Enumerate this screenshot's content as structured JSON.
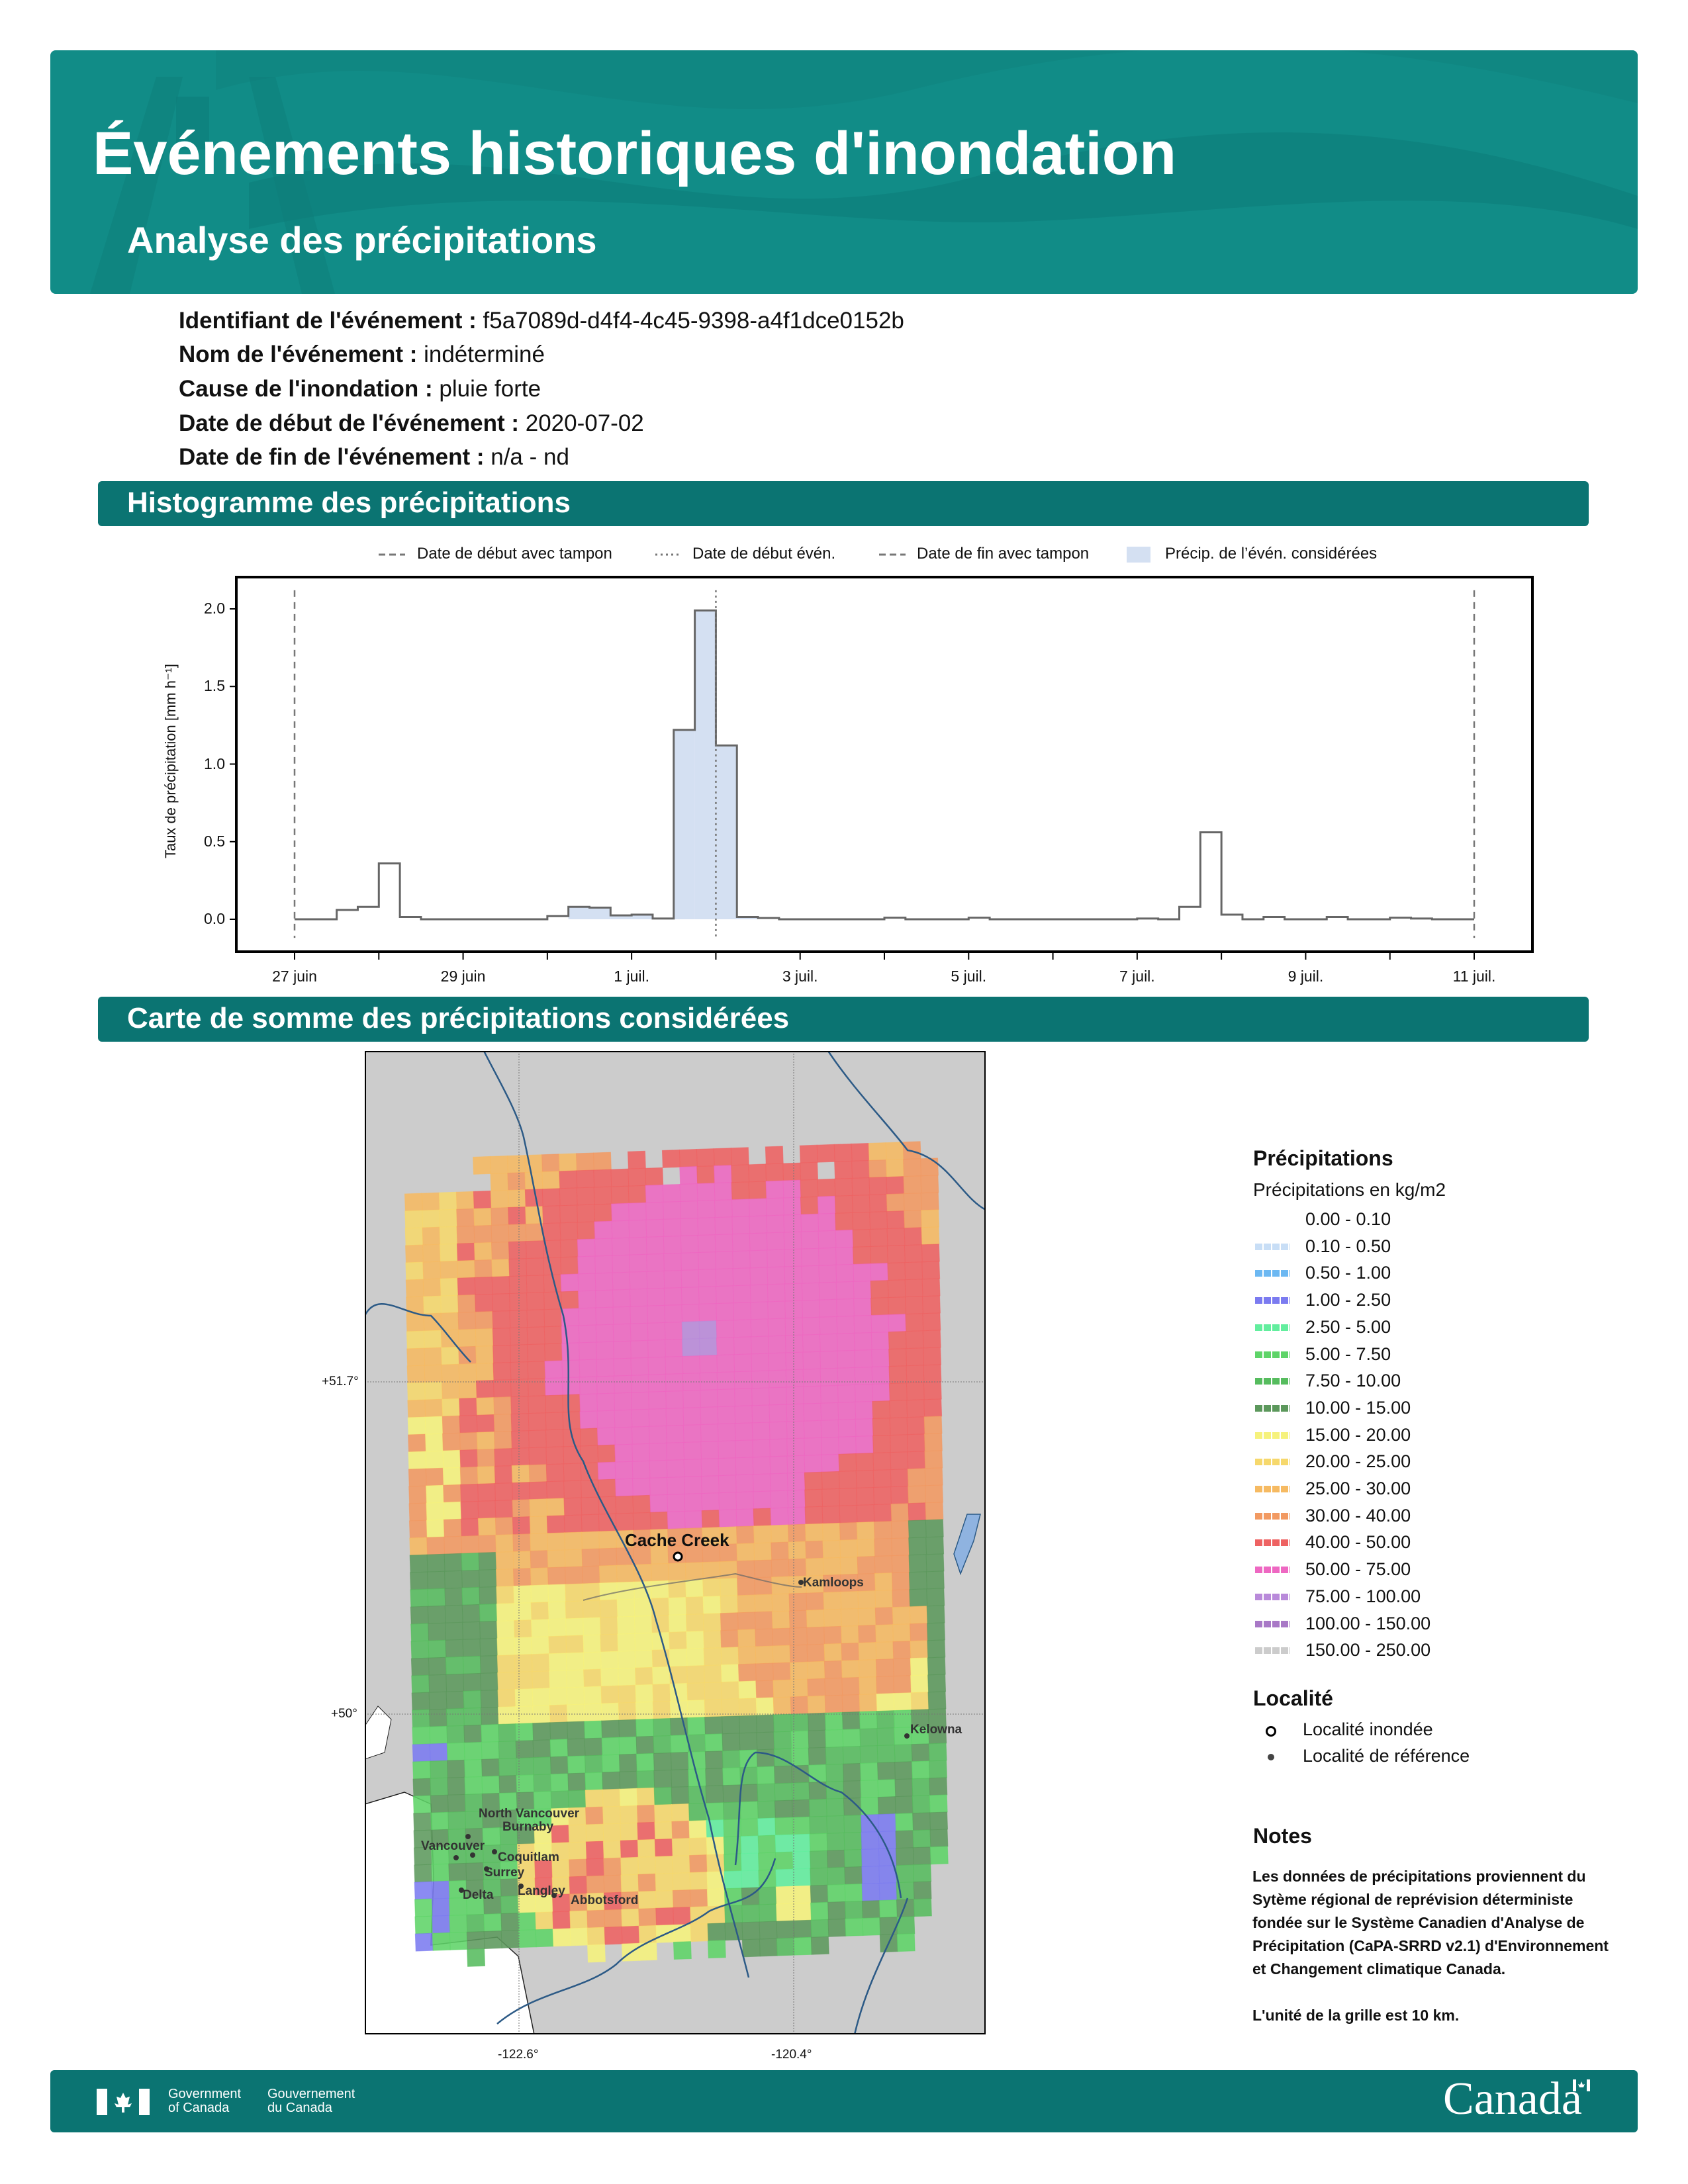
{
  "header": {
    "title": "Événements historiques d'inondation",
    "subtitle": "Analyse des précipitations"
  },
  "event": [
    {
      "label": "Identifiant de l'événement :",
      "value": "f5a7089d-d4f4-4c45-9398-a4f1dce0152b"
    },
    {
      "label": "Nom de l'événement :",
      "value": "indéterminé"
    },
    {
      "label": "Cause de l'inondation :",
      "value": "pluie forte"
    },
    {
      "label": "Date de début de l'événement :",
      "value": "2020-07-02"
    },
    {
      "label": "Date de fin de l'événement :",
      "value": "n/a - nd"
    }
  ],
  "sections": {
    "histogram": "Histogramme des précipitations",
    "map": "Carte de somme des précipitations considérées"
  },
  "chart_data": {
    "type": "bar",
    "title": "",
    "xlabel": "",
    "ylabel": "Taux de précipitation [mm h⁻¹]",
    "ylim": [
      -0.21,
      2.21
    ],
    "yticks": [
      "0.0",
      "0.5",
      "1.0",
      "1.5",
      "2.0"
    ],
    "ytick_values": [
      0,
      0.5,
      1.0,
      1.5,
      2.0
    ],
    "xtick_labels": [
      "27 juin",
      "29 juin",
      "1 juil.",
      "3 juil.",
      "5 juil.",
      "7 juil.",
      "9 juil.",
      "11 juil."
    ],
    "x_start_date": "2020-06-27",
    "x_range_days": [
      0,
      14
    ],
    "bin_hours": 6,
    "legend": [
      {
        "label": "Date de début avec tampon",
        "style": "dashed"
      },
      {
        "label": "Date de début évén.",
        "style": "dotted"
      },
      {
        "label": "Date de fin avec tampon",
        "style": "dashed"
      },
      {
        "label": "Précip. de l’évén. considérées",
        "style": "patch"
      }
    ],
    "lines_days": {
      "buffer_start": 0,
      "event_start": 5,
      "buffer_end": 14
    },
    "considered_bins": [
      13,
      21
    ],
    "values": [
      0,
      0,
      0.06,
      0.08,
      0.36,
      0.015,
      0,
      0,
      0,
      0,
      0,
      0,
      0.02,
      0.08,
      0.075,
      0.025,
      0.03,
      0.005,
      1.22,
      1.99,
      1.12,
      0.015,
      0.008,
      0,
      0,
      0,
      0,
      0,
      0.01,
      0,
      0,
      0,
      0.01,
      0,
      0,
      0,
      0,
      0,
      0,
      0,
      0.005,
      0,
      0.08,
      0.56,
      0.03,
      0,
      0.015,
      0,
      0,
      0.015,
      0,
      0,
      0.01,
      0.005,
      0,
      0
    ],
    "colors": {
      "line": "#666666",
      "fill": "#d4e0f2"
    }
  },
  "map": {
    "lat_labels": [
      "+51.7°",
      "+50°"
    ],
    "lon_labels": [
      "-122.6°",
      "-120.4°"
    ],
    "flooded_locality": "Cache Creek",
    "reference_localities": [
      "Kamloops",
      "Kelowna",
      "North Vancouver",
      "Burnaby",
      "Vancouver",
      "Coquitlam",
      "Surrey",
      "Delta",
      "Langley",
      "Abbotsford"
    ]
  },
  "legend": {
    "title": "Précipitations",
    "subtitle": "Précipitations en kg/m2",
    "items": [
      {
        "label": "0.00 - 0.10",
        "color": "#ffffff"
      },
      {
        "label": "0.10 - 0.50",
        "color": "#c8def6"
      },
      {
        "label": "0.50 - 1.00",
        "color": "#6cb8f2"
      },
      {
        "label": "1.00 - 2.50",
        "color": "#7b7bf0"
      },
      {
        "label": "2.50 - 5.00",
        "color": "#62ee9e"
      },
      {
        "label": "5.00 - 7.50",
        "color": "#5ed468"
      },
      {
        "label": "7.50 - 10.00",
        "color": "#56bc5e"
      },
      {
        "label": "10.00 - 15.00",
        "color": "#5c985c"
      },
      {
        "label": "15.00 - 20.00",
        "color": "#f6f27c"
      },
      {
        "label": "20.00 - 25.00",
        "color": "#f6d86c"
      },
      {
        "label": "25.00 - 30.00",
        "color": "#f6ba62"
      },
      {
        "label": "30.00 - 40.00",
        "color": "#f29a62"
      },
      {
        "label": "40.00 - 50.00",
        "color": "#ee6262"
      },
      {
        "label": "50.00 - 75.00",
        "color": "#ee68c2"
      },
      {
        "label": "75.00 - 100.00",
        "color": "#b98ada"
      },
      {
        "label": "100.00 - 150.00",
        "color": "#a878c6"
      },
      {
        "label": "150.00 - 250.00",
        "color": "#cccccc"
      }
    ],
    "locality_title": "Localité",
    "locality_items": [
      "Localité inondée",
      "Localité de référence"
    ]
  },
  "notes": {
    "title": "Notes",
    "text": "Les données de précipitations proviennent du Sytème régional de reprévision déterministe fondée sur le Système Canadien d'Analyse de Précipitation (CaPA-SRRD v2.1) d'Environnement et Changement climatique Canada.",
    "grid": "L'unité de la grille est 10 km."
  },
  "footer": {
    "gov_en_1": "Government",
    "gov_en_2": "of Canada",
    "gov_fr_1": "Gouvernement",
    "gov_fr_2": "du Canada",
    "wordmark": "Canada"
  }
}
